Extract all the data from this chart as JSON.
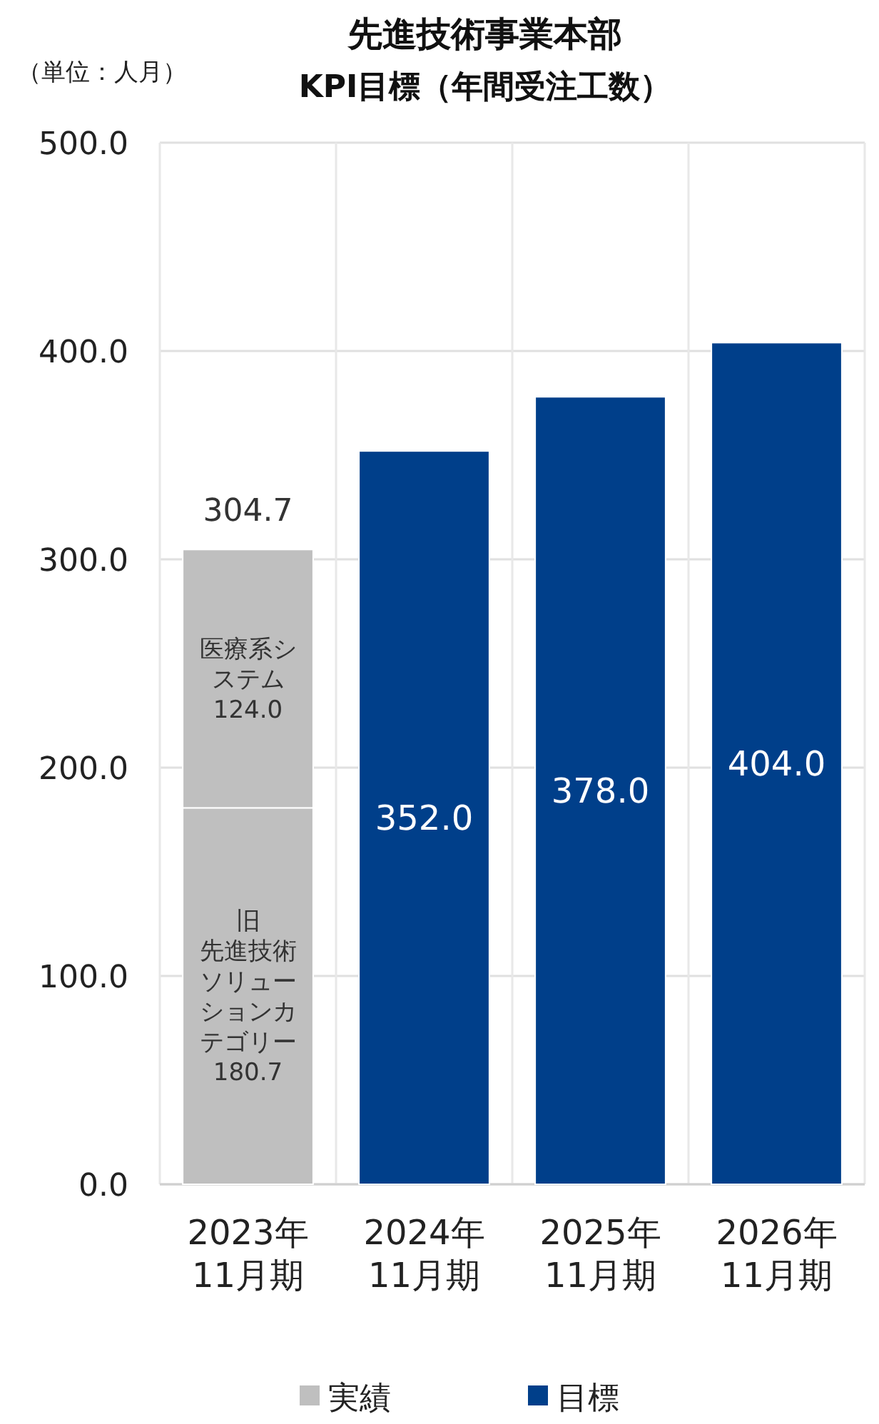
{
  "chart_data": {
    "type": "bar",
    "stacked": true,
    "title": "先進技術事業本部",
    "subtitle": "KPI目標（年間受注工数）",
    "ylabel": "（単位：人月）",
    "categories": [
      "2023年\n11月期",
      "2024年\n11月期",
      "2025年\n11月期",
      "2026年\n11月期"
    ],
    "series": [
      {
        "name": "実績",
        "color": "#bfbfbf",
        "values": [
          180.7,
          null,
          null,
          null
        ],
        "value_labels": [
          "旧先進技術ソリューションカテゴリー180.7",
          null,
          null,
          null
        ]
      },
      {
        "color": "#bfbfbf",
        "values": [
          124.0,
          null,
          null,
          null
        ],
        "value_labels": [
          "医療系システム124.0",
          null,
          null,
          null
        ]
      },
      {
        "name": "目標",
        "color": "#003f8a",
        "values": [
          null,
          352.0,
          378.0,
          404.0
        ],
        "value_labels": [
          null,
          "352.0",
          "378.0",
          "404.0"
        ]
      }
    ],
    "totals": [
      "304.7",
      null,
      null,
      null
    ],
    "ylim": [
      0,
      500
    ],
    "yticks": [
      {
        "value": 0,
        "label": "0.0"
      },
      {
        "value": 100,
        "label": "100.0"
      },
      {
        "value": 200,
        "label": "200.0"
      },
      {
        "value": 300,
        "label": "300.0"
      },
      {
        "value": 400,
        "label": "400.0"
      },
      {
        "value": 500,
        "label": "500.0"
      }
    ],
    "grid": true,
    "legend": "bottom"
  }
}
